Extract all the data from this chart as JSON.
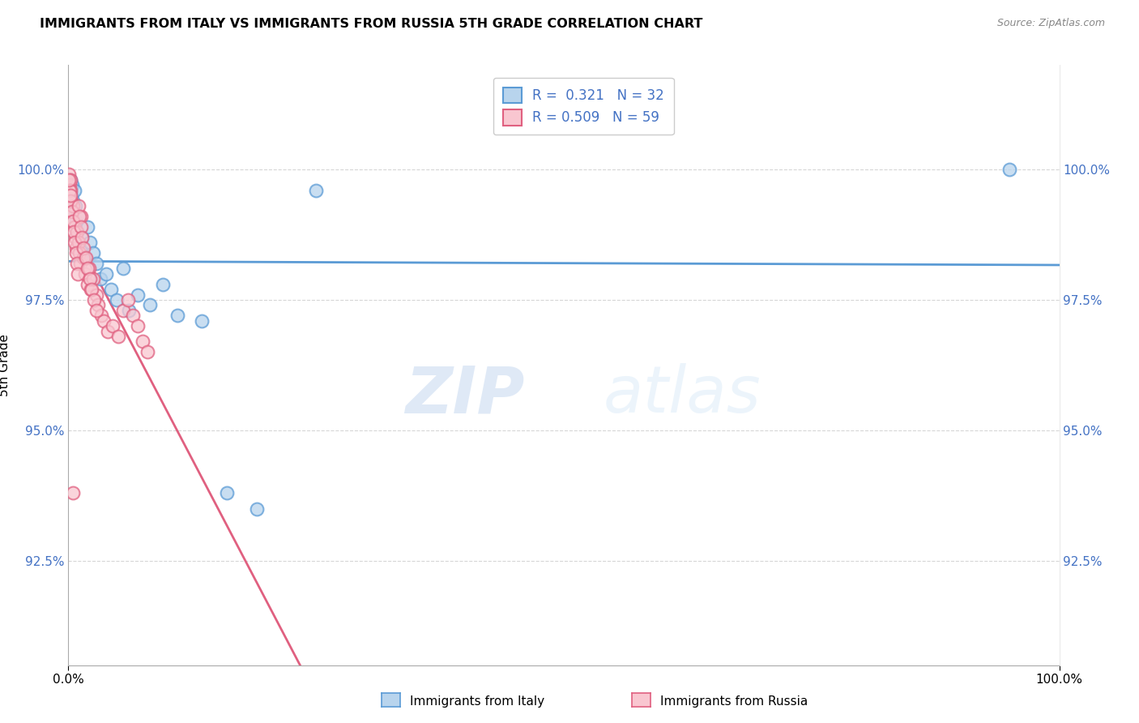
{
  "title": "IMMIGRANTS FROM ITALY VS IMMIGRANTS FROM RUSSIA 5TH GRADE CORRELATION CHART",
  "source": "Source: ZipAtlas.com",
  "ylabel": "5th Grade",
  "watermark_zip": "ZIP",
  "watermark_atlas": "atlas",
  "legend_italy_label": "Immigrants from Italy",
  "legend_russia_label": "Immigrants from Russia",
  "R_italy": 0.321,
  "N_italy": 32,
  "R_russia": 0.509,
  "N_russia": 59,
  "color_italy_fill": "#b8d4ed",
  "color_italy_edge": "#5b9bd5",
  "color_russia_fill": "#f9c6d0",
  "color_russia_edge": "#e06080",
  "color_italy_line": "#5b9bd5",
  "color_russia_line": "#e06080",
  "color_ytick": "#4472c4",
  "xlim": [
    0,
    100
  ],
  "ylim": [
    90.5,
    102.0
  ],
  "yticks": [
    92.5,
    95.0,
    97.5,
    100.0
  ],
  "italy_x": [
    0.1,
    0.2,
    0.3,
    0.4,
    0.5,
    0.6,
    0.7,
    0.8,
    0.9,
    1.0,
    1.2,
    1.4,
    1.6,
    1.9,
    2.2,
    2.5,
    2.8,
    3.2,
    3.8,
    4.3,
    4.9,
    5.5,
    6.1,
    7.0,
    8.2,
    9.5,
    11.0,
    13.5,
    16.0,
    19.0,
    25.0,
    95.0
  ],
  "italy_y": [
    99.2,
    99.8,
    99.5,
    99.7,
    99.4,
    99.6,
    99.3,
    99.0,
    98.8,
    99.1,
    98.5,
    98.7,
    98.3,
    98.9,
    98.6,
    98.4,
    98.2,
    97.9,
    98.0,
    97.7,
    97.5,
    98.1,
    97.3,
    97.6,
    97.4,
    97.8,
    97.2,
    97.1,
    93.8,
    93.5,
    99.6,
    100.0
  ],
  "russia_x": [
    0.05,
    0.1,
    0.15,
    0.2,
    0.25,
    0.3,
    0.35,
    0.4,
    0.5,
    0.6,
    0.7,
    0.8,
    0.9,
    1.0,
    1.1,
    1.2,
    1.3,
    1.5,
    1.7,
    1.9,
    2.1,
    2.3,
    2.5,
    2.8,
    3.0,
    3.3,
    3.6,
    4.0,
    4.5,
    5.0,
    5.5,
    6.0,
    6.5,
    7.0,
    7.5,
    8.0,
    0.15,
    0.25,
    0.35,
    0.45,
    0.55,
    0.65,
    0.75,
    0.85,
    0.95,
    1.05,
    1.15,
    1.25,
    1.35,
    1.55,
    1.75,
    1.95,
    2.15,
    2.35,
    2.55,
    2.85,
    0.08,
    0.18,
    0.45
  ],
  "russia_y": [
    99.9,
    99.7,
    99.5,
    99.8,
    99.6,
    99.4,
    99.2,
    99.0,
    99.3,
    98.9,
    98.7,
    98.5,
    98.8,
    98.6,
    98.4,
    98.2,
    99.1,
    98.3,
    98.0,
    97.8,
    98.1,
    97.7,
    97.9,
    97.6,
    97.4,
    97.2,
    97.1,
    96.9,
    97.0,
    96.8,
    97.3,
    97.5,
    97.2,
    97.0,
    96.7,
    96.5,
    99.6,
    99.4,
    99.2,
    99.0,
    98.8,
    98.6,
    98.4,
    98.2,
    98.0,
    99.3,
    99.1,
    98.9,
    98.7,
    98.5,
    98.3,
    98.1,
    97.9,
    97.7,
    97.5,
    97.3,
    99.8,
    99.5,
    93.8
  ]
}
